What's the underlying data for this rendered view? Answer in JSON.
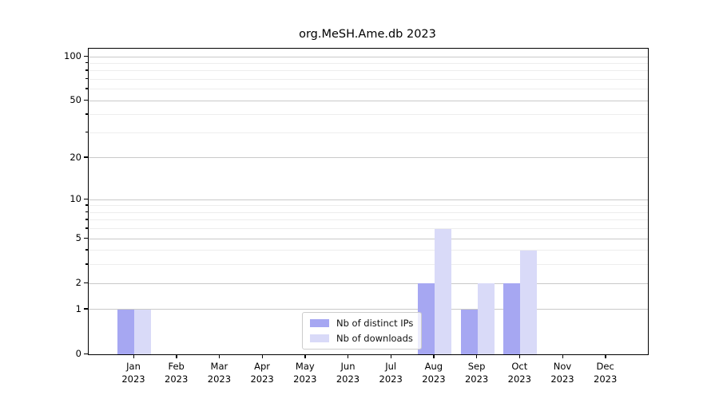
{
  "figure": {
    "title": "org.MeSH.Ame.db 2023"
  },
  "chart_data": {
    "type": "bar",
    "title": "org.MeSH.Ame.db 2023",
    "categories": [
      "Jan",
      "Feb",
      "Mar",
      "Apr",
      "May",
      "Jun",
      "Jul",
      "Aug",
      "Sep",
      "Oct",
      "Nov",
      "Dec"
    ],
    "category_year": "2023",
    "series": [
      {
        "name": "Nb of distinct IPs",
        "color": "#a6a7f2",
        "values": [
          1,
          0,
          0,
          0,
          0,
          0,
          0,
          2,
          1,
          2,
          0,
          0
        ]
      },
      {
        "name": "Nb of downloads",
        "color": "#d9daf8",
        "values": [
          1,
          0,
          0,
          0,
          0,
          0,
          0,
          6,
          2,
          4,
          0,
          0
        ]
      }
    ],
    "xlabel": "",
    "ylabel": "",
    "yscale": "log1p",
    "ylim": [
      0,
      113
    ],
    "yticks": [
      0,
      1,
      2,
      5,
      10,
      20,
      50,
      100
    ],
    "minor_gridlines": [
      3,
      4,
      6,
      7,
      8,
      9,
      30,
      40,
      60,
      70,
      80,
      90
    ],
    "grid": "horizontal",
    "legend_position": "lower-center-inside",
    "colors": {
      "major_grid": "#c9c9c9",
      "minor_grid": "#ededed",
      "spine": "#000000",
      "background": "#ffffff"
    }
  }
}
